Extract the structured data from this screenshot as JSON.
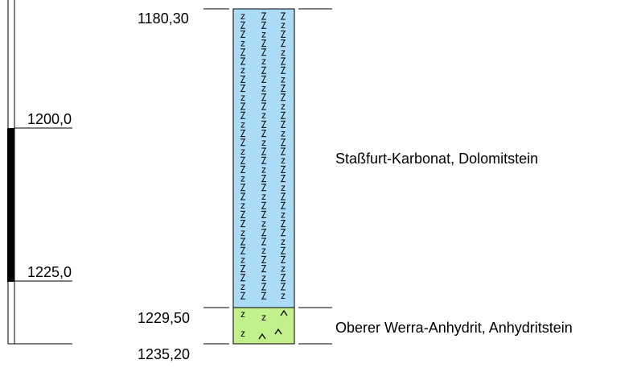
{
  "scale": {
    "marks": [
      {
        "label": "1200,0"
      },
      {
        "label": "1225,0"
      }
    ]
  },
  "column": {
    "top_depth": "1180,30",
    "bottom_depth": "1235,20",
    "layers": [
      {
        "top_label": "1180,30",
        "description": "Staßfurt-Karbonat, Dolomitstein",
        "color": "#abdcf7",
        "pattern": "dolomite-z-symbols"
      },
      {
        "top_label": "1229,50",
        "description": "Oberer Werra-Anhydrit, Anhydritstein",
        "color": "#c2f08a",
        "pattern": "anhydrite-caret-symbols"
      }
    ]
  }
}
